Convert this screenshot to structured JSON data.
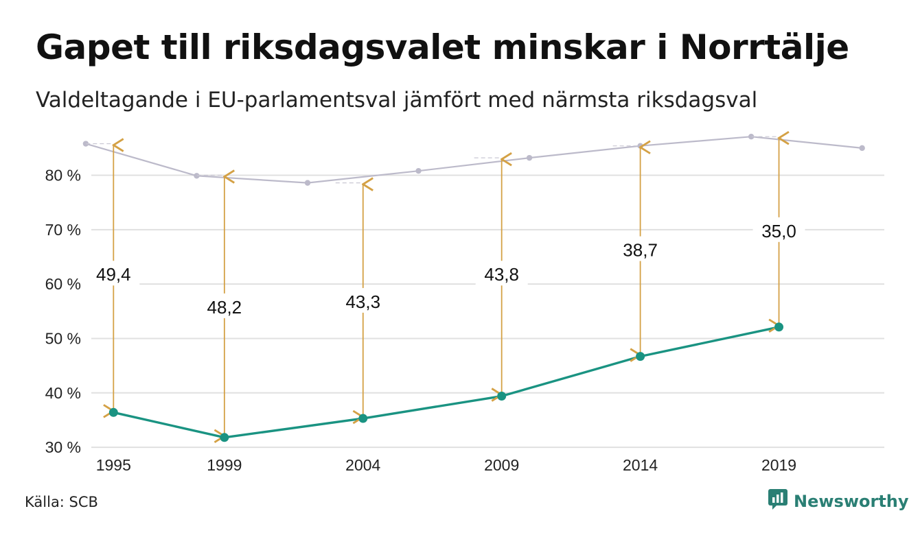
{
  "title": "Gapet till riksdagsvalet minskar i Norrtälje",
  "subtitle": "Valdeltagande i EU-parlamentsval jämfört med närmsta riksdagsval",
  "source": "Källa: SCB",
  "brand": "Newsworthy",
  "colors": {
    "eu_line": "#1a9382",
    "riksdag_line": "#bcbaca",
    "arrow": "#d4a145",
    "grid": "#e0e0e0",
    "brand": "#2a7f74"
  },
  "chart_data": {
    "type": "line",
    "title": "Gapet till riksdagsvalet minskar i Norrtälje",
    "subtitle": "Valdeltagande i EU-parlamentsval jämfört med närmsta riksdagsval",
    "ylim": [
      29,
      87
    ],
    "xlim": [
      1994.2,
      2022.8
    ],
    "yticks": [
      {
        "value": 30,
        "label": "30 %"
      },
      {
        "value": 40,
        "label": "40 %"
      },
      {
        "value": 50,
        "label": "50 %"
      },
      {
        "value": 60,
        "label": "60 %"
      },
      {
        "value": 70,
        "label": "70 %"
      },
      {
        "value": 80,
        "label": "80 %"
      }
    ],
    "xticks": [
      {
        "value": 1995,
        "label": "1995"
      },
      {
        "value": 1999,
        "label": "1999"
      },
      {
        "value": 2004,
        "label": "2004"
      },
      {
        "value": 2009,
        "label": "2009"
      },
      {
        "value": 2014,
        "label": "2014"
      },
      {
        "value": 2019,
        "label": "2019"
      }
    ],
    "grid": true,
    "series": [
      {
        "key": "riksdag",
        "x": [
          1994,
          1998,
          2002,
          2006,
          2010,
          2014,
          2018,
          2022
        ],
        "values": [
          85.8,
          79.9,
          78.6,
          80.8,
          83.2,
          85.4,
          87.1,
          85.0
        ]
      },
      {
        "key": "eu",
        "x": [
          1995,
          1999,
          2004,
          2009,
          2014,
          2019
        ],
        "values": [
          36.4,
          31.8,
          35.3,
          39.4,
          46.7,
          52.1
        ]
      }
    ],
    "gaps": [
      {
        "x": 1995,
        "top": 85.8,
        "bottom": 36.4,
        "label": "49,4",
        "label_y": 61.5
      },
      {
        "x": 1999,
        "top": 80.0,
        "bottom": 31.8,
        "label": "48,2",
        "label_y": 55.5
      },
      {
        "x": 2004,
        "top": 78.6,
        "bottom": 35.3,
        "label": "43,3",
        "label_y": 56.5
      },
      {
        "x": 2009,
        "top": 83.2,
        "bottom": 39.4,
        "label": "43,8",
        "label_y": 61.5
      },
      {
        "x": 2014,
        "top": 85.4,
        "bottom": 46.7,
        "label": "38,7",
        "label_y": 66.0
      },
      {
        "x": 2019,
        "top": 87.1,
        "bottom": 52.1,
        "label": "35,0",
        "label_y": 69.5
      }
    ]
  }
}
